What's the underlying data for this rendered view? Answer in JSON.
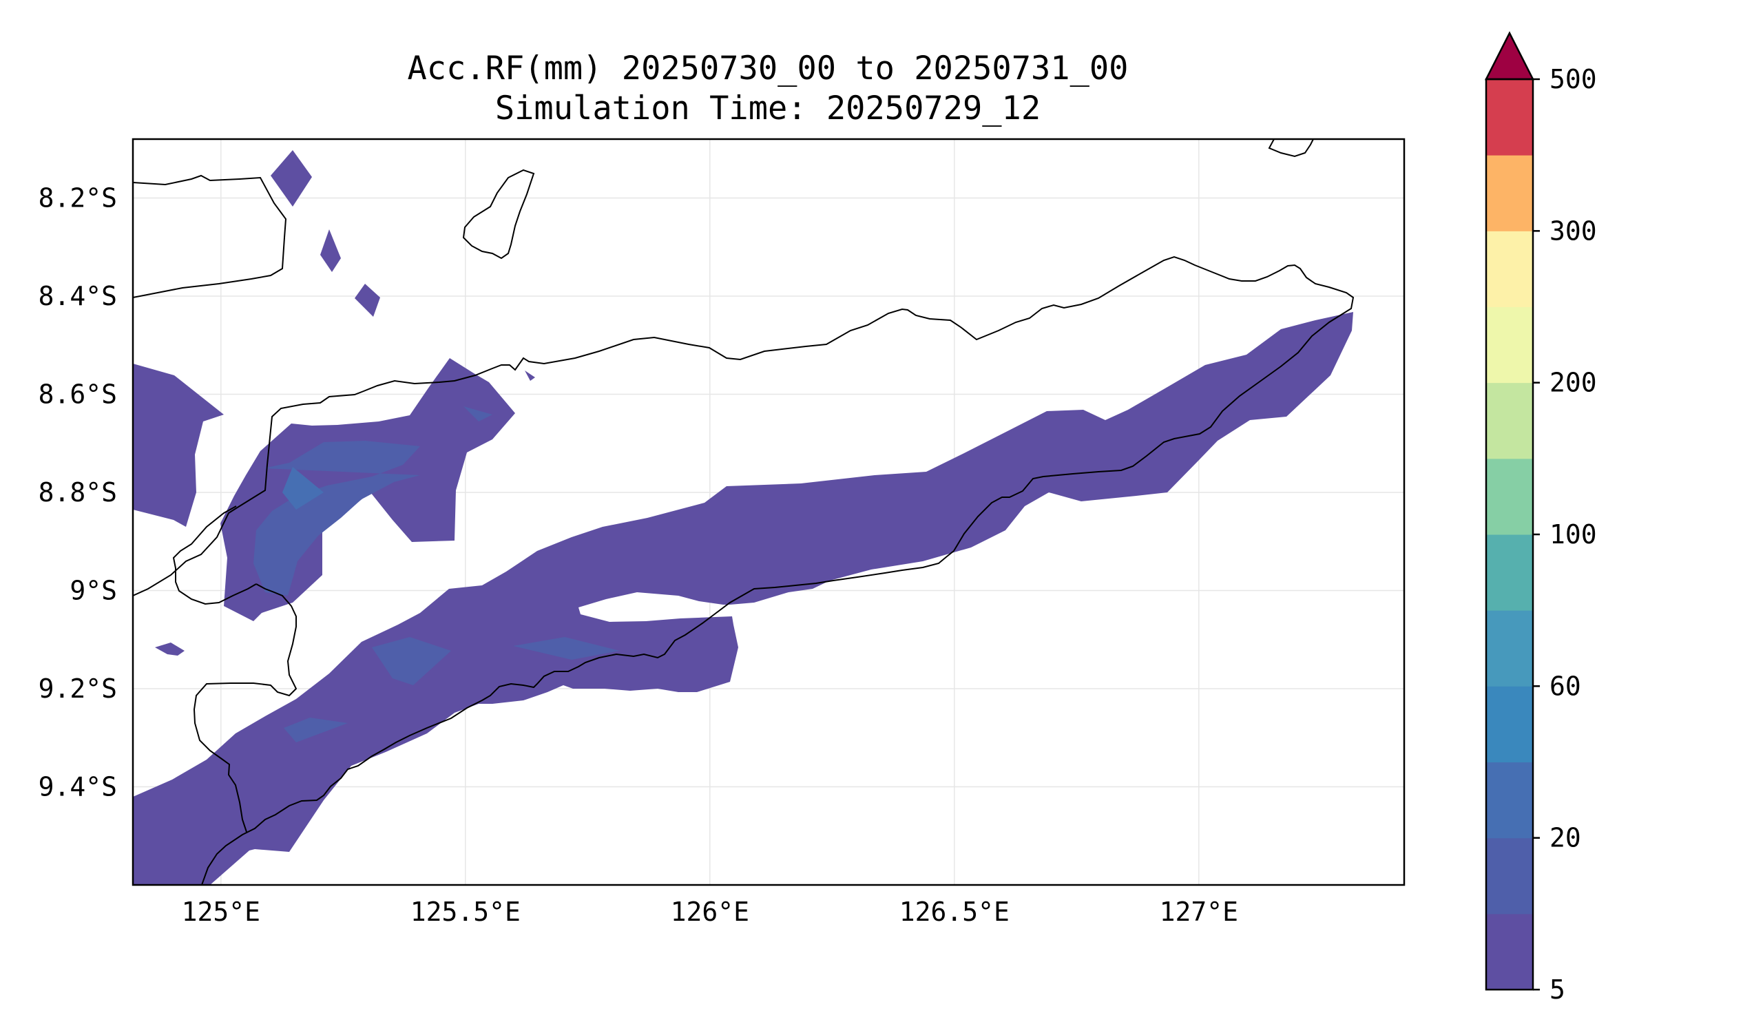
{
  "title": {
    "line1": "Acc.RF(mm) 20250730_00 to 20250731_00",
    "line2": "Simulation Time: 20250729_12"
  },
  "map": {
    "lon_range": [
      124.82,
      127.42
    ],
    "lat_range": [
      -9.6,
      -8.08
    ],
    "lon_ticks": [
      {
        "value": 125.0,
        "label": "125°E"
      },
      {
        "value": 125.5,
        "label": "125.5°E"
      },
      {
        "value": 126.0,
        "label": "126°E"
      },
      {
        "value": 126.5,
        "label": "126.5°E"
      },
      {
        "value": 127.0,
        "label": "127°E"
      }
    ],
    "lat_ticks": [
      {
        "value": -8.2,
        "label": "8.2°S"
      },
      {
        "value": -8.4,
        "label": "8.4°S"
      },
      {
        "value": -8.6,
        "label": "8.6°S"
      },
      {
        "value": -8.8,
        "label": "8.8°S"
      },
      {
        "value": -9.0,
        "label": "9°S"
      },
      {
        "value": -9.2,
        "label": "9.2°S"
      },
      {
        "value": -9.4,
        "label": "9.4°S"
      }
    ],
    "gridlines": true,
    "gridline_color": "#e6e6e6",
    "coastline_color": "#000000"
  },
  "colorbar": {
    "levels": [
      5,
      10,
      20,
      40,
      60,
      80,
      100,
      150,
      200,
      250,
      300,
      350,
      500
    ],
    "colors": [
      "#5e4fa2",
      "#4f5faa",
      "#466fb3",
      "#3a88bd",
      "#4799bc",
      "#56b0ae",
      "#86cfa5",
      "#c4e6a0",
      "#eef7ab",
      "#fdf1a8",
      "#fdb466",
      "#d53e4f"
    ],
    "extend_color": "#9e0142",
    "tick_labels": [
      {
        "value": 5,
        "label": "5"
      },
      {
        "value": 20,
        "label": "20"
      },
      {
        "value": 60,
        "label": "60"
      },
      {
        "value": 100,
        "label": "100"
      },
      {
        "value": 200,
        "label": "200"
      },
      {
        "value": 300,
        "label": "300"
      },
      {
        "value": 500,
        "label": "500"
      }
    ]
  }
}
